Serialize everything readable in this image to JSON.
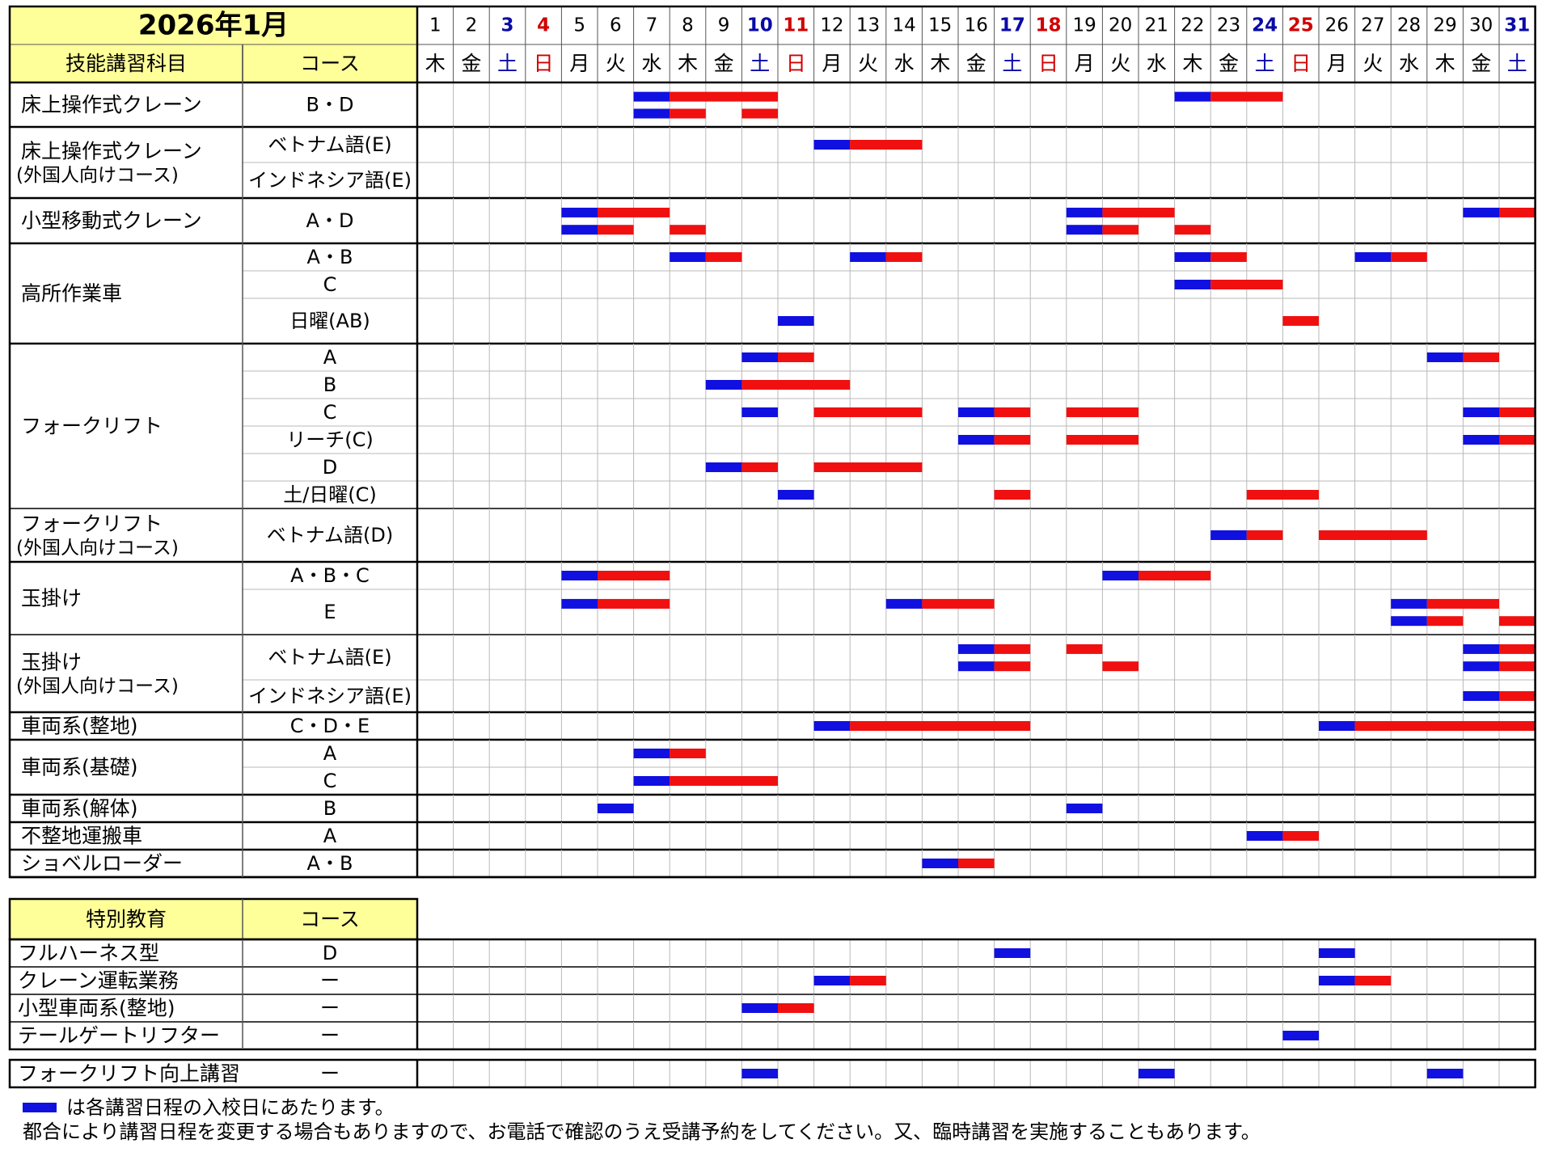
{
  "title": "2026年1月",
  "days": [
    {
      "d": "1",
      "w": "木"
    },
    {
      "d": "2",
      "w": "金"
    },
    {
      "d": "3",
      "w": "土"
    },
    {
      "d": "4",
      "w": "日"
    },
    {
      "d": "5",
      "w": "月"
    },
    {
      "d": "6",
      "w": "火"
    },
    {
      "d": "7",
      "w": "水"
    },
    {
      "d": "8",
      "w": "木"
    },
    {
      "d": "9",
      "w": "金"
    },
    {
      "d": "10",
      "w": "土"
    },
    {
      "d": "11",
      "w": "日"
    },
    {
      "d": "12",
      "w": "月"
    },
    {
      "d": "13",
      "w": "火"
    },
    {
      "d": "14",
      "w": "水"
    },
    {
      "d": "15",
      "w": "木"
    },
    {
      "d": "16",
      "w": "金"
    },
    {
      "d": "17",
      "w": "土"
    },
    {
      "d": "18",
      "w": "日"
    },
    {
      "d": "19",
      "w": "月"
    },
    {
      "d": "20",
      "w": "火"
    },
    {
      "d": "21",
      "w": "水"
    },
    {
      "d": "22",
      "w": "木"
    },
    {
      "d": "23",
      "w": "金"
    },
    {
      "d": "24",
      "w": "土"
    },
    {
      "d": "25",
      "w": "日"
    },
    {
      "d": "26",
      "w": "月"
    },
    {
      "d": "27",
      "w": "火"
    },
    {
      "d": "28",
      "w": "水"
    },
    {
      "d": "29",
      "w": "木"
    },
    {
      "d": "30",
      "w": "金"
    },
    {
      "d": "31",
      "w": "土"
    }
  ],
  "colors": {
    "header_bg": "#ffff99",
    "entry": "#1010e0",
    "course": "#f01010",
    "saturday": "#0a0aa8",
    "sunday": "#d00000",
    "grid": "#b8b8b8"
  },
  "section1": {
    "header": {
      "subject": "技能講習科目",
      "course": "コース"
    },
    "groups": [
      {
        "subject": [
          "床上操作式クレーン"
        ],
        "rows": [
          {
            "course": "B・D",
            "bars": [
              [
                7,
                1,
                3
              ],
              [
                22,
                1,
                2
              ]
            ],
            "bars2": [
              [
                7,
                1,
                1
              ],
              [
                10,
                0,
                1
              ]
            ]
          }
        ]
      },
      {
        "subject": [
          "床上操作式クレーン",
          "(外国人向けコース)"
        ],
        "rows": [
          {
            "course": "ベトナム語(E)",
            "bars": [
              [
                12,
                1,
                2
              ]
            ]
          },
          {
            "course": "インドネシア語(E)",
            "bars": []
          }
        ]
      },
      {
        "subject": [
          "小型移動式クレーン"
        ],
        "rows": [
          {
            "course": "A・D",
            "bars": [
              [
                5,
                1,
                2
              ],
              [
                19,
                1,
                2
              ],
              [
                30,
                1,
                1
              ]
            ],
            "bars2": [
              [
                5,
                1,
                1
              ],
              [
                8,
                0,
                1
              ],
              [
                19,
                1,
                1
              ],
              [
                22,
                0,
                1
              ]
            ]
          }
        ]
      },
      {
        "subject": [
          "高所作業車"
        ],
        "rows": [
          {
            "course": "A・B",
            "bars": [
              [
                8,
                1,
                1
              ],
              [
                13,
                1,
                1
              ],
              [
                22,
                1,
                1
              ],
              [
                27,
                1,
                1
              ]
            ]
          },
          {
            "course": "C",
            "bars": [
              [
                22,
                1,
                2
              ]
            ]
          },
          {
            "course": "日曜(AB)",
            "bars": [
              [
                11,
                1,
                0
              ],
              [
                25,
                0,
                1
              ]
            ]
          }
        ]
      },
      {
        "subject": [
          "フォークリフト"
        ],
        "rows": [
          {
            "course": "A",
            "bars": [
              [
                10,
                1,
                1
              ],
              [
                29,
                1,
                1
              ]
            ]
          },
          {
            "course": "B",
            "bars": [
              [
                9,
                1,
                3
              ]
            ]
          },
          {
            "course": "C",
            "bars": [
              [
                10,
                1,
                0
              ],
              [
                12,
                0,
                3
              ],
              [
                16,
                1,
                1
              ],
              [
                19,
                0,
                2
              ],
              [
                30,
                1,
                1
              ]
            ]
          },
          {
            "course": "リーチ(C)",
            "bars": [
              [
                16,
                1,
                1
              ],
              [
                19,
                0,
                2
              ],
              [
                30,
                1,
                1
              ]
            ]
          },
          {
            "course": "D",
            "bars": [
              [
                9,
                1,
                1
              ],
              [
                12,
                0,
                3
              ]
            ]
          },
          {
            "course": "土/日曜(C)",
            "bars": [
              [
                11,
                1,
                0
              ],
              [
                17,
                0,
                1
              ],
              [
                24,
                0,
                2
              ]
            ]
          }
        ]
      },
      {
        "subject": [
          "フォークリフト",
          "(外国人向けコース)"
        ],
        "rows": [
          {
            "course": "ベトナム語(D)",
            "bars": [
              [
                23,
                1,
                1
              ],
              [
                26,
                0,
                3
              ]
            ]
          }
        ]
      },
      {
        "subject": [
          "玉掛け"
        ],
        "rows": [
          {
            "course": "A・B・C",
            "bars": [
              [
                5,
                1,
                2
              ],
              [
                20,
                1,
                2
              ]
            ]
          },
          {
            "course": "E",
            "bars": [
              [
                5,
                1,
                2
              ],
              [
                14,
                1,
                2
              ],
              [
                28,
                1,
                2
              ]
            ],
            "bars2": [
              [
                28,
                1,
                1
              ],
              [
                31,
                0,
                1
              ]
            ]
          }
        ]
      },
      {
        "subject": [
          "玉掛け",
          "(外国人向けコース)"
        ],
        "rows": [
          {
            "course": "ベトナム語(E)",
            "bars": [
              [
                16,
                1,
                1
              ],
              [
                19,
                0,
                1
              ],
              [
                30,
                1,
                1
              ]
            ],
            "bars2": [
              [
                16,
                1,
                1
              ],
              [
                20,
                0,
                1
              ],
              [
                30,
                1,
                1
              ]
            ]
          },
          {
            "course": "インドネシア語(E)",
            "bars": [
              [
                30,
                1,
                1
              ]
            ]
          }
        ]
      },
      {
        "subject": [
          "車両系(整地)"
        ],
        "rows": [
          {
            "course": "C・D・E",
            "bars": [
              [
                12,
                1,
                5
              ],
              [
                26,
                1,
                5
              ]
            ]
          }
        ]
      },
      {
        "subject": [
          "車両系(基礎)"
        ],
        "rows": [
          {
            "course": "A",
            "bars": [
              [
                7,
                1,
                1
              ]
            ]
          },
          {
            "course": "C",
            "bars": [
              [
                7,
                1,
                3
              ]
            ]
          }
        ]
      },
      {
        "subject": [
          "車両系(解体)"
        ],
        "rows": [
          {
            "course": "B",
            "bars": [
              [
                6,
                1,
                0
              ],
              [
                19,
                1,
                0
              ]
            ]
          }
        ]
      },
      {
        "subject": [
          "不整地運搬車"
        ],
        "rows": [
          {
            "course": "A",
            "bars": [
              [
                24,
                1,
                1
              ]
            ]
          }
        ]
      },
      {
        "subject": [
          "ショベルローダー"
        ],
        "rows": [
          {
            "course": "A・B",
            "bars": [
              [
                15,
                1,
                1
              ]
            ]
          }
        ]
      }
    ]
  },
  "section2": {
    "header": {
      "subject": "特別教育",
      "course": "コース"
    },
    "rows": [
      {
        "subject": "フルハーネス型",
        "course": "D",
        "bars": [
          [
            17,
            1,
            0
          ],
          [
            26,
            1,
            0
          ]
        ]
      },
      {
        "subject": "クレーン運転業務",
        "course": "ー",
        "bars": [
          [
            12,
            1,
            1
          ],
          [
            26,
            1,
            1
          ]
        ]
      },
      {
        "subject": "小型車両系(整地)",
        "course": "ー",
        "bars": [
          [
            10,
            1,
            1
          ]
        ]
      },
      {
        "subject": "テールゲートリフター",
        "course": "ー",
        "bars": [
          [
            25,
            1,
            0
          ]
        ]
      }
    ]
  },
  "section3": {
    "rows": [
      {
        "subject": "フォークリフト向上講習",
        "course": "ー",
        "bars": [
          [
            10,
            1,
            0
          ],
          [
            21,
            1,
            0
          ],
          [
            29,
            1,
            0
          ]
        ]
      }
    ]
  },
  "footer": {
    "legend_text": "は各講習日程の入校日にあたります。",
    "note": "都合により講習日程を変更する場合もありますので、お電話で確認のうえ受講予約をしてください。又、臨時講習を実施することもあります。"
  }
}
